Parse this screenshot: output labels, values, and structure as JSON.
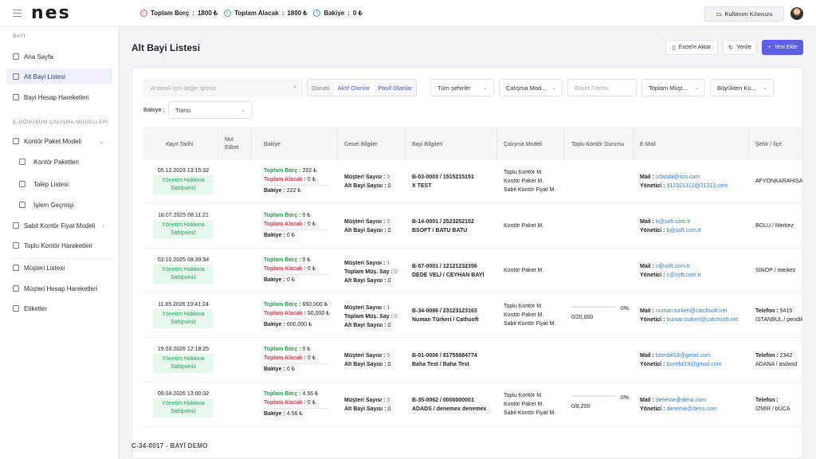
{
  "app": {
    "logo": "nes"
  },
  "summary": [
    {
      "label": "Toplam Borç",
      "value": "1800 ₺",
      "icon": "minus-circle-icon"
    },
    {
      "label": "Toplam Alacak",
      "value": "1800 ₺",
      "icon": "check-circle-icon"
    },
    {
      "label": "Bakiye",
      "value": "0 ₺",
      "icon": "info-circle-icon"
    }
  ],
  "header": {
    "guide_label": "Kullanım Kılavuzu"
  },
  "sidebar": {
    "section1": "BAYİ",
    "items1": [
      "Ana Sayfa",
      "Alt Bayi Listesi",
      "Bayi Hesap Hareketleri"
    ],
    "section2": "E-DÖNÜŞÜM ÇALIŞMA MODELLERİ",
    "items2": [
      "Kontör Paket Modeli",
      "Kontör Paketleri",
      "Talep Listesi",
      "İşlem Geçmişi",
      "Sabit Kontör Fiyat Modeli",
      "Toplu Kontör Hareketleri"
    ],
    "items3": [
      "Müşteri Listesi",
      "Müşteri Hesap Hareketleri",
      "Etiketler"
    ],
    "footer_code": "C-34-0017 - BAYİ DEMO"
  },
  "page": {
    "title": "Alt Bayi Listesi",
    "excel_label": "Excel'e Aktar",
    "refresh_label": "Yenile",
    "new_label": "Yeni Ekle"
  },
  "filters": {
    "search_placeholder": "Aramak için değer giriniz",
    "durum": "Durum",
    "aktif": "Aktif Olanlar",
    "pasif": "Pasif Olanlar",
    "city": "Tüm şehirler",
    "model": "Çalışma Mod...",
    "tag_placeholder": "Etiket Filtresi",
    "sort_field": "Toplam Müşt...",
    "sort_order": "Büyükten Kü...",
    "bakiye_label": "Bakiye :",
    "bakiye_value": "Tümü"
  },
  "table": {
    "headers": [
      "Kayıt Tarihi",
      "Not Etiket",
      "Bakiye",
      "Genel Bilgiler",
      "Bayi Bilgileri",
      "Çalışma Modeli",
      "Toplu Kontör Durumu",
      "E-Mail",
      "Şehir / İlçe"
    ],
    "labels": {
      "borc": "Toplam Borç :",
      "alacak": "Toplam Alacak :",
      "bakiye": "Bakiye :",
      "musteri": "Müşteri Sayısı :",
      "altbayi": "Alt Bayi Sayısı :",
      "topmus": "Toplam Müş. Say :",
      "mail": "Mail :",
      "yonetici": "Yönetici :",
      "telefon": "Telefon :"
    },
    "badge": "Yönetim Hakkına Sahipsiniz",
    "rows": [
      {
        "date": "05.12.2023 13:15:32",
        "borc": "222 ₺",
        "alacak": "0 ₺",
        "bakiye": "222 ₺",
        "musteri": "0",
        "topmus": "",
        "altbayi": "0",
        "code": "B-03-0003 / 1515215151",
        "name": "X TEST",
        "models": [
          "Toplu Kontör M.",
          "Kontör Paket M.",
          "Sabit Kontör Fiyat M."
        ],
        "kontor_pct": "",
        "kontor_val": "",
        "mail": "sdasda@sss.com",
        "yonetici": "312321312@21313.com",
        "telefon": "",
        "city": "AFYONKARAHİSAR"
      },
      {
        "date": "18.07.2025 08:11:21",
        "borc": "0 ₺",
        "alacak": "0 ₺",
        "bakiye": "0 ₺",
        "musteri": "0",
        "topmus": "",
        "altbayi": "0",
        "code": "B-14-0001 / 2523252152",
        "name": "BSOFT / BATU BATU",
        "models": [
          "Kontör Paket M."
        ],
        "kontor_pct": "",
        "kontor_val": "",
        "mail": "b@soft.com.tr",
        "yonetici": "b@soft.com.tr",
        "telefon": "",
        "city": "BOLU / Merkez"
      },
      {
        "date": "02.10.2025 08:39:34",
        "borc": "0 ₺",
        "alacak": "0 ₺",
        "bakiye": "0 ₺",
        "musteri": "1",
        "topmus": "0",
        "altbayi": "0",
        "code": "B-57-0001 / 12121232356",
        "name": "DEDE VELİ / CEYHAN BAYİ",
        "models": [
          "Kontör Paket M."
        ],
        "kontor_pct": "",
        "kontor_val": "",
        "mail": "c@soft.com.tr",
        "yonetici": "c@soft.com.tr",
        "telefon": "",
        "city": "SİNOP / merkez"
      },
      {
        "date": "11.05.2026 10:41:24",
        "borc": "650,000 ₺",
        "alacak": "50,000 ₺",
        "bakiye": "600,000 ₺",
        "musteri": "1",
        "topmus": "0",
        "altbayi": "0",
        "code": "B-34-0086 / 23123123163",
        "name": "Numan Türkeri / Cathsoft",
        "models": [
          "Toplu Kontör M.",
          "Kontör Paket M.",
          "Sabit Kontör Fiyat M."
        ],
        "kontor_pct": "0%",
        "kontor_val": "0/20,000",
        "mail": "numan.turkeri@catchsoft.net",
        "yonetici": "numan.turkeri@catchsoft.net",
        "telefon": "5415",
        "city": "İSTANBUL / pendik"
      },
      {
        "date": "19.03.2026 12:18:25",
        "borc": "0 ₺",
        "alacak": "0 ₺",
        "bakiye": "0 ₺",
        "musteri": "0",
        "topmus": "",
        "altbayi": "0",
        "code": "B-01-0006 / 81755884774",
        "name": "Baha Test / Baha Test",
        "models": [],
        "kontor_pct": "",
        "kontor_val": "",
        "mail": "bzenbil19@gmail.com",
        "yonetici": "bzenbil19@gmail.com",
        "telefon": "2342",
        "city": "ADANA / asdasd"
      },
      {
        "date": "09.04.2026 13:00:32",
        "borc": "4.56 ₺",
        "alacak": "0 ₺",
        "bakiye": "4.56 ₺",
        "musteri": "0",
        "topmus": "",
        "altbayi": "0",
        "code": "B-35-0062 / 0000000001",
        "name": "ADADS / denemex denemex",
        "models": [
          "Toplu Kontör M.",
          "Kontör Paket M.",
          "Sabit Kontör Fiyat M."
        ],
        "kontor_pct": "0%",
        "kontor_val": "0/8,200",
        "mail": "deneme@deno.com",
        "yonetici": "deneme@deno.com",
        "telefon": "",
        "city": "İZMİR / bUCA"
      }
    ]
  }
}
